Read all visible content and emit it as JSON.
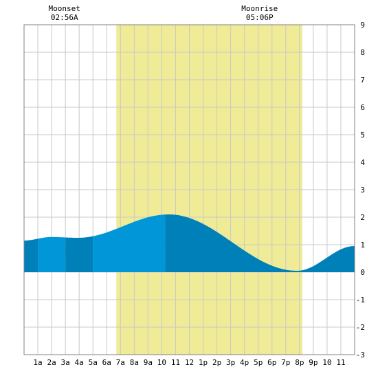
{
  "chart_data": {
    "type": "area",
    "title": "",
    "xlabel": "",
    "ylabel": "",
    "x_ticks": [
      "1a",
      "2a",
      "3a",
      "4a",
      "5a",
      "6a",
      "7a",
      "8a",
      "9a",
      "10",
      "11",
      "12",
      "1p",
      "2p",
      "3p",
      "4p",
      "5p",
      "6p",
      "7p",
      "8p",
      "9p",
      "10",
      "11"
    ],
    "xlim": [
      0,
      24
    ],
    "ylim": [
      -3,
      9
    ],
    "y_ticks": [
      -3,
      -2,
      -1,
      0,
      1,
      2,
      3,
      4,
      5,
      6,
      7,
      8,
      9
    ],
    "grid": true,
    "daylight": {
      "start_hour": 6.7,
      "end_hour": 20.2,
      "color": "#f0eb96"
    },
    "moon_events": [
      {
        "label": "Moonset",
        "time": "02:56A",
        "hour": 2.93
      },
      {
        "label": "Moonrise",
        "time": "05:06P",
        "hour": 17.1
      }
    ],
    "tide_extremes": [
      {
        "hour": 0.0,
        "height": 1.15
      },
      {
        "hour": 2.0,
        "height": 1.28
      },
      {
        "hour": 3.9,
        "height": 1.25
      },
      {
        "hour": 10.5,
        "height": 2.1
      },
      {
        "hour": 19.8,
        "height": 0.05
      },
      {
        "hour": 24.0,
        "height": 0.95
      }
    ],
    "colors": {
      "fill_dark": "#0080b8",
      "fill_light": "#0096d8",
      "grid": "#c8c8c8",
      "border": "#808080"
    }
  }
}
